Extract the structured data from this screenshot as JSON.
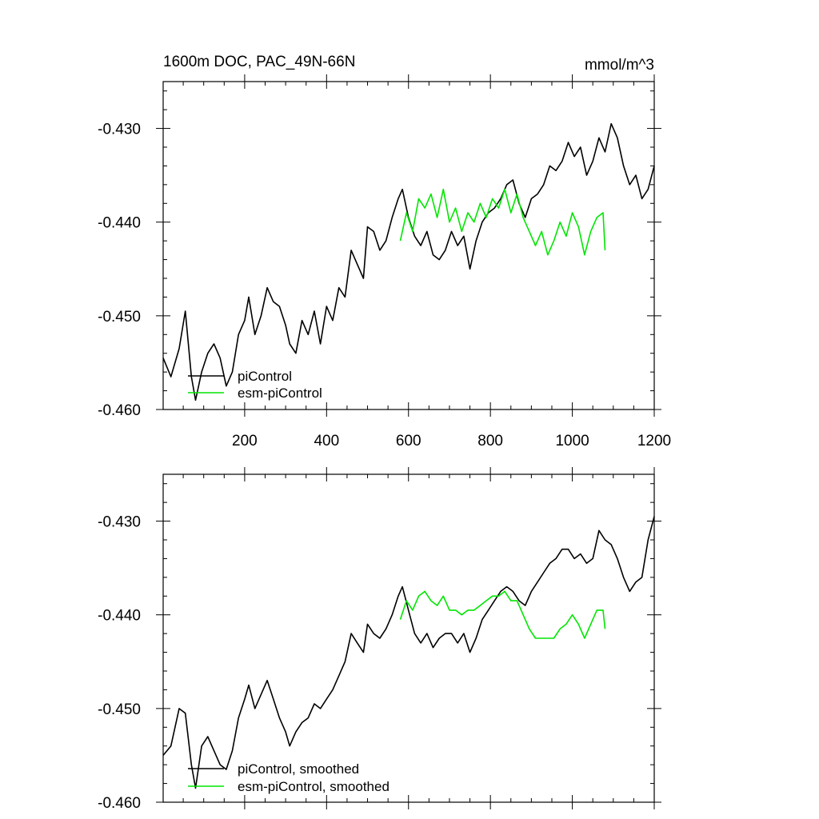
{
  "colors": {
    "piControl": "#000000",
    "esm_piControl": "#00e600",
    "axes": "#000000"
  },
  "chart_data": [
    {
      "type": "line",
      "title": "1600m DOC, PAC_49N-66N",
      "units": "mmol/m^3",
      "xlim": [
        1,
        1200
      ],
      "ylim": [
        -0.46,
        -0.425
      ],
      "x_ticks": [
        "200",
        "400",
        "600",
        "800",
        "1000",
        "1200"
      ],
      "y_ticks": [
        "-0.430",
        "-0.440",
        "-0.450",
        "-0.460"
      ],
      "legend": {
        "placement": "bottom-left"
      },
      "series": [
        {
          "name": "piControl",
          "color": "#000000",
          "x": [
            1,
            20,
            40,
            55,
            70,
            80,
            95,
            110,
            125,
            140,
            155,
            170,
            185,
            200,
            210,
            225,
            240,
            255,
            270,
            285,
            300,
            310,
            325,
            340,
            355,
            370,
            385,
            400,
            415,
            430,
            445,
            460,
            475,
            490,
            500,
            515,
            530,
            545,
            560,
            575,
            585,
            600,
            615,
            630,
            645,
            660,
            675,
            690,
            705,
            720,
            735,
            750,
            765,
            780,
            795,
            810,
            825,
            840,
            855,
            870,
            885,
            900,
            915,
            930,
            945,
            960,
            975,
            990,
            1005,
            1020,
            1035,
            1050,
            1065,
            1080,
            1095,
            1110,
            1125,
            1140,
            1155,
            1170,
            1185,
            1200
          ],
          "y": [
            -0.4545,
            -0.4565,
            -0.4535,
            -0.4495,
            -0.4565,
            -0.459,
            -0.456,
            -0.454,
            -0.453,
            -0.4545,
            -0.4575,
            -0.456,
            -0.452,
            -0.4505,
            -0.448,
            -0.452,
            -0.45,
            -0.447,
            -0.4485,
            -0.449,
            -0.451,
            -0.453,
            -0.454,
            -0.4505,
            -0.452,
            -0.4495,
            -0.453,
            -0.449,
            -0.4505,
            -0.447,
            -0.448,
            -0.443,
            -0.4445,
            -0.446,
            -0.4405,
            -0.441,
            -0.443,
            -0.442,
            -0.4395,
            -0.4375,
            -0.4365,
            -0.4395,
            -0.4415,
            -0.4425,
            -0.441,
            -0.4435,
            -0.444,
            -0.443,
            -0.441,
            -0.4425,
            -0.4415,
            -0.445,
            -0.442,
            -0.44,
            -0.439,
            -0.4385,
            -0.4375,
            -0.436,
            -0.4355,
            -0.438,
            -0.4395,
            -0.4375,
            -0.437,
            -0.436,
            -0.434,
            -0.4345,
            -0.4335,
            -0.4315,
            -0.433,
            -0.432,
            -0.435,
            -0.4335,
            -0.431,
            -0.4325,
            -0.4295,
            -0.431,
            -0.434,
            -0.436,
            -0.435,
            -0.4375,
            -0.4365,
            -0.434
          ]
        },
        {
          "name": "esm-piControl",
          "color": "#00e600",
          "x": [
            580,
            595,
            610,
            625,
            640,
            655,
            670,
            685,
            700,
            715,
            730,
            745,
            760,
            775,
            790,
            805,
            820,
            835,
            850,
            865,
            880,
            895,
            910,
            925,
            940,
            955,
            970,
            985,
            1000,
            1015,
            1030,
            1045,
            1060,
            1075,
            1080
          ],
          "y": [
            -0.442,
            -0.439,
            -0.441,
            -0.4375,
            -0.4385,
            -0.437,
            -0.4395,
            -0.4365,
            -0.44,
            -0.4385,
            -0.441,
            -0.439,
            -0.44,
            -0.438,
            -0.4395,
            -0.4375,
            -0.4385,
            -0.4365,
            -0.439,
            -0.437,
            -0.4395,
            -0.441,
            -0.4425,
            -0.441,
            -0.4435,
            -0.442,
            -0.44,
            -0.4415,
            -0.439,
            -0.4405,
            -0.4435,
            -0.441,
            -0.4395,
            -0.439,
            -0.443
          ]
        }
      ]
    },
    {
      "type": "line",
      "xlim": [
        1,
        1200
      ],
      "ylim": [
        -0.46,
        -0.425
      ],
      "y_ticks": [
        "-0.430",
        "-0.440",
        "-0.450",
        "-0.460"
      ],
      "legend": {
        "placement": "bottom-left"
      },
      "series": [
        {
          "name": "piControl, smoothed",
          "color": "#000000",
          "x": [
            1,
            20,
            40,
            55,
            70,
            80,
            95,
            110,
            125,
            140,
            155,
            170,
            185,
            200,
            210,
            225,
            240,
            255,
            270,
            285,
            300,
            310,
            325,
            340,
            355,
            370,
            385,
            400,
            415,
            430,
            445,
            460,
            475,
            490,
            500,
            515,
            530,
            545,
            560,
            575,
            585,
            600,
            615,
            630,
            645,
            660,
            675,
            690,
            705,
            720,
            735,
            750,
            765,
            780,
            795,
            810,
            825,
            840,
            855,
            870,
            885,
            900,
            915,
            930,
            945,
            960,
            975,
            990,
            1005,
            1020,
            1035,
            1050,
            1065,
            1080,
            1095,
            1110,
            1125,
            1140,
            1155,
            1170,
            1185,
            1200
          ],
          "y": [
            -0.455,
            -0.454,
            -0.45,
            -0.4505,
            -0.456,
            -0.4585,
            -0.454,
            -0.453,
            -0.4545,
            -0.456,
            -0.4565,
            -0.4545,
            -0.451,
            -0.449,
            -0.4475,
            -0.45,
            -0.4485,
            -0.447,
            -0.449,
            -0.451,
            -0.4525,
            -0.454,
            -0.4525,
            -0.4515,
            -0.451,
            -0.4495,
            -0.45,
            -0.449,
            -0.448,
            -0.4465,
            -0.445,
            -0.442,
            -0.443,
            -0.444,
            -0.441,
            -0.442,
            -0.4425,
            -0.4415,
            -0.44,
            -0.438,
            -0.437,
            -0.4395,
            -0.442,
            -0.443,
            -0.442,
            -0.4435,
            -0.4425,
            -0.442,
            -0.442,
            -0.443,
            -0.442,
            -0.444,
            -0.4425,
            -0.4405,
            -0.4395,
            -0.4385,
            -0.4375,
            -0.437,
            -0.4375,
            -0.4385,
            -0.439,
            -0.4375,
            -0.4365,
            -0.4355,
            -0.4345,
            -0.434,
            -0.433,
            -0.433,
            -0.434,
            -0.4335,
            -0.4345,
            -0.434,
            -0.431,
            -0.432,
            -0.4325,
            -0.434,
            -0.436,
            -0.4375,
            -0.4365,
            -0.436,
            -0.432,
            -0.4295
          ]
        },
        {
          "name": "esm-piControl, smoothed",
          "color": "#00e600",
          "x": [
            580,
            595,
            610,
            625,
            640,
            655,
            670,
            685,
            700,
            715,
            730,
            745,
            760,
            775,
            790,
            805,
            820,
            835,
            850,
            865,
            880,
            895,
            910,
            925,
            940,
            955,
            970,
            985,
            1000,
            1015,
            1030,
            1045,
            1060,
            1075,
            1080
          ],
          "y": [
            -0.4405,
            -0.4385,
            -0.4395,
            -0.438,
            -0.4375,
            -0.4385,
            -0.439,
            -0.438,
            -0.4395,
            -0.4395,
            -0.44,
            -0.4395,
            -0.4395,
            -0.439,
            -0.4385,
            -0.438,
            -0.438,
            -0.4375,
            -0.4385,
            -0.4385,
            -0.44,
            -0.4415,
            -0.4425,
            -0.4425,
            -0.4425,
            -0.4425,
            -0.4415,
            -0.441,
            -0.44,
            -0.441,
            -0.4425,
            -0.441,
            -0.4395,
            -0.4395,
            -0.4415
          ]
        }
      ]
    }
  ]
}
